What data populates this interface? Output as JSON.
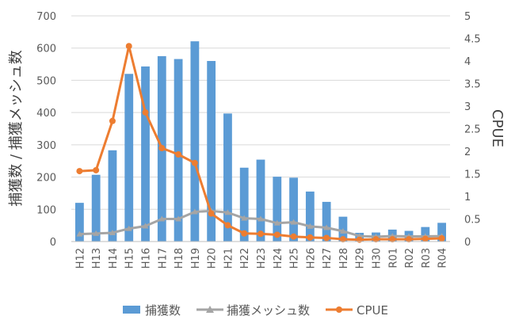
{
  "chart_data": {
    "type": "bar",
    "categories": [
      "H12",
      "H13",
      "H14",
      "H15",
      "H16",
      "H17",
      "H18",
      "H19",
      "H20",
      "H21",
      "H22",
      "H23",
      "H24",
      "H25",
      "H26",
      "H27",
      "H28",
      "H29",
      "H30",
      "R01",
      "R02",
      "R03",
      "R04"
    ],
    "series": [
      {
        "name": "捕獲数",
        "type": "bar",
        "axis": "left",
        "color": "#5B9BD5",
        "values": [
          120,
          207,
          283,
          520,
          543,
          575,
          566,
          621,
          560,
          397,
          229,
          254,
          201,
          198,
          155,
          123,
          77,
          27,
          28,
          37,
          33,
          45,
          58
        ]
      },
      {
        "name": "捕獲メッシュ数",
        "type": "line",
        "axis": "left",
        "color": "#A5A5A5",
        "marker": "triangle",
        "values": [
          23,
          25,
          27,
          40,
          48,
          70,
          70,
          92,
          95,
          90,
          72,
          70,
          57,
          60,
          47,
          43,
          32,
          17,
          15,
          17,
          16,
          16,
          17
        ]
      },
      {
        "name": "CPUE",
        "type": "line",
        "axis": "right",
        "color": "#ED7D31",
        "marker": "circle",
        "values": [
          1.56,
          1.58,
          2.67,
          4.33,
          2.86,
          2.07,
          1.93,
          1.74,
          0.62,
          0.36,
          0.18,
          0.17,
          0.15,
          0.11,
          0.09,
          0.08,
          0.05,
          0.04,
          0.05,
          0.05,
          0.05,
          0.06,
          0.07
        ]
      }
    ],
    "ylabel": "捕獲数 / 捕獲メッシュ数",
    "y2label": "CPUE",
    "ylim": [
      0,
      700
    ],
    "y2lim": [
      0,
      5
    ],
    "yticks": [
      "0",
      "100",
      "200",
      "300",
      "400",
      "500",
      "600",
      "700"
    ],
    "y2ticks": [
      "0",
      "0.5",
      "1",
      "1.5",
      "2",
      "2.5",
      "3",
      "3.5",
      "4",
      "4.5",
      "5"
    ],
    "grid": true,
    "legend": "bottom"
  }
}
